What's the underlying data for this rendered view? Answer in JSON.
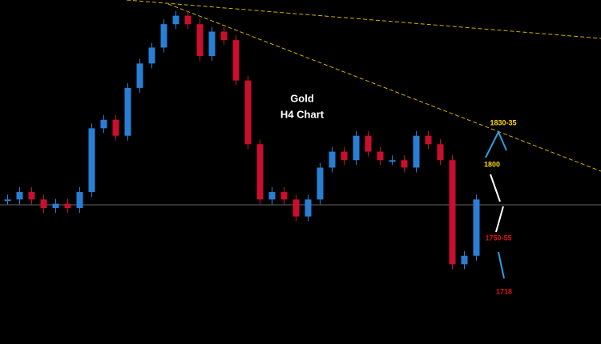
{
  "chart_data": {
    "type": "candlestick",
    "title": "Gold",
    "subtitle": "H4 Chart",
    "annotations": [
      "1830-35",
      "1800",
      "1750-55",
      "1718"
    ],
    "ylim": [
      1764,
      2075
    ],
    "values": [
      1891,
      1898,
      1891,
      1883,
      1887,
      1883,
      1898,
      1958,
      1966,
      1951,
      1996,
      2019,
      2034,
      2056,
      2064,
      2056,
      2026,
      2049,
      2041,
      2003,
      1943,
      1891,
      1898,
      1891,
      1875,
      1891,
      1921,
      1936,
      1928,
      1951,
      1936,
      1928,
      1928,
      1921,
      1951,
      1943,
      1928,
      1830,
      1838,
      1891
    ],
    "up_color": "#2a7fd4",
    "down_color": "#c8102e"
  }
}
